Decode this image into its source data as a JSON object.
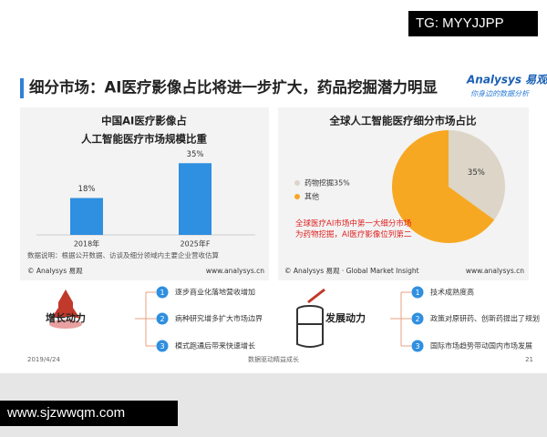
{
  "header": {
    "title": "细分市场：AI医疗影像占比将进一步扩大，药品挖掘潜力明显",
    "logo": "Analysys 易观",
    "logo_tagline": "你身边的数据分析"
  },
  "chart_data": [
    {
      "type": "bar",
      "title": "中国AI医疗影像占",
      "subtitle": "人工智能医疗市场规模比重",
      "categories": [
        "2018年",
        "2025年F"
      ],
      "values": [
        18,
        35
      ],
      "value_labels": [
        "18%",
        "35%"
      ],
      "color": "#2f8fe0",
      "note": "数据说明：根据公开数据、访谈及细分领域内主要企业营收估算",
      "source": "© Analysys 易观",
      "url": "www.analysys.cn"
    },
    {
      "type": "pie",
      "title": "全球人工智能医疗细分市场占比",
      "categories": [
        "药物挖掘35%",
        "其他"
      ],
      "values": [
        35,
        65
      ],
      "value_labels": [
        "35%",
        null
      ],
      "colors": [
        "#dcd5c8",
        "#f7a823"
      ],
      "annotation": "全球医疗AI市场中第一大细分市场为药物挖掘，AI医疗影像位列第二",
      "source": "© Analysys 易观 · Global Market Insight",
      "url": "www.analysys.cn"
    }
  ],
  "drivers": [
    {
      "title": "增长动力",
      "items": [
        {
          "number": "1",
          "text": "逐步商业化落地营收增加"
        },
        {
          "number": "2",
          "text": "病种研究增多扩大市场边界"
        },
        {
          "number": "3",
          "text": "模式跑通后带来快速增长"
        }
      ]
    },
    {
      "title": "发展动力",
      "items": [
        {
          "number": "1",
          "text": "技术成熟度高"
        },
        {
          "number": "2",
          "text": "政策对原研药、创新药提出了规划"
        },
        {
          "number": "3",
          "text": "国际市场趋势带动国内市场发展"
        }
      ]
    }
  ],
  "footer": {
    "date": "2019/4/24",
    "slogan": "数据驱动精益成长",
    "page": "21"
  },
  "watermarks": [
    "TG: MYYJJPP",
    "www.sjzwwqm.com"
  ]
}
